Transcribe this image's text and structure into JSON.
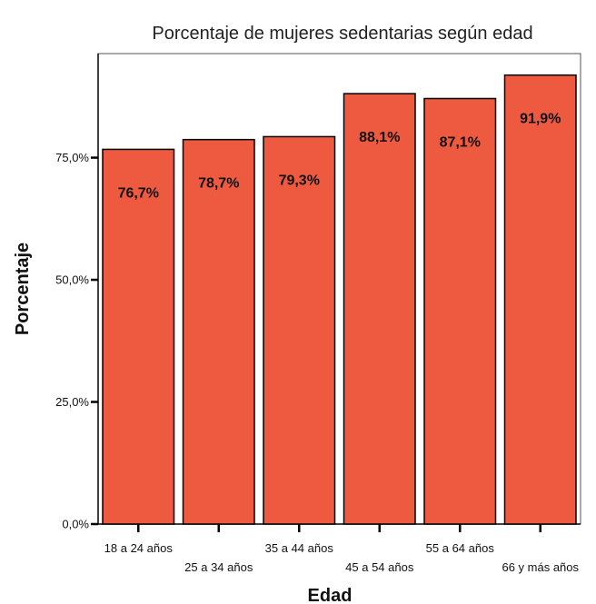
{
  "chart_data": {
    "type": "bar",
    "title": "Porcentaje de mujeres sedentarias según edad",
    "xlabel": "Edad",
    "ylabel": "Porcentaje",
    "categories": [
      "18 a 24 años",
      "25 a 34 años",
      "35 a 44 años",
      "45 a 54 años",
      "55 a 64 años",
      "66 y más años"
    ],
    "values": [
      76.7,
      78.7,
      79.3,
      88.1,
      87.1,
      91.9
    ],
    "data_labels": [
      "76,7%",
      "78,7%",
      "79,3%",
      "88,1%",
      "87,1%",
      "91,9%"
    ],
    "y_ticks": [
      0,
      25,
      50,
      75
    ],
    "y_tick_labels": [
      "0,0%",
      "25,0%",
      "50,0%",
      "75,0%"
    ],
    "ylim": [
      0,
      96.3
    ],
    "bar_color": "#ee5a40",
    "grid": false,
    "legend": "none"
  }
}
